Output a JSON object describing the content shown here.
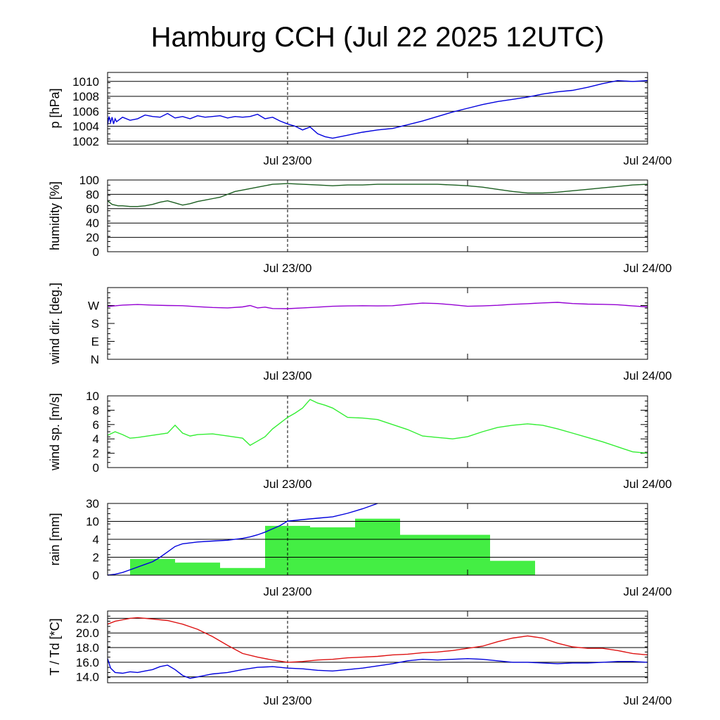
{
  "title": "Hamburg CCH (Jul 22 2025 12UTC)",
  "time_axis": {
    "start_hours": 0,
    "end_hours": 36,
    "ticks": [
      {
        "h": 12,
        "label": "Jul 23/00",
        "dashed": true
      },
      {
        "h": 24,
        "label": "",
        "dashed": false
      },
      {
        "h": 36,
        "label": "Jul 24/00",
        "dashed": false
      }
    ]
  },
  "chart_data": [
    {
      "type": "line",
      "ylabel": "p [hPa]",
      "ylim": [
        1001.6,
        1011.2
      ],
      "yticks": [
        {
          "v": 1002,
          "label": "1002"
        },
        {
          "v": 1004,
          "label": "1004"
        },
        {
          "v": 1006,
          "label": "1006"
        },
        {
          "v": 1008,
          "label": "1008"
        },
        {
          "v": 1010,
          "label": "1010"
        }
      ],
      "grid": true,
      "series": [
        {
          "color": "#0000dd",
          "x": [
            0,
            0.1,
            0.2,
            0.3,
            0.4,
            0.5,
            0.6,
            1,
            1.5,
            2,
            2.5,
            3,
            3.5,
            4,
            4.5,
            5,
            5.5,
            6,
            6.5,
            7,
            7.5,
            8,
            8.5,
            9,
            9.5,
            10,
            10.5,
            11,
            11.5,
            12,
            12.5,
            13,
            13.5,
            14,
            14.5,
            15,
            15.5,
            16,
            16.5,
            17,
            18,
            19,
            20,
            21,
            22,
            23,
            24,
            25,
            26,
            27,
            28,
            29,
            30,
            31,
            32,
            33,
            34,
            35,
            36
          ],
          "y": [
            1004.2,
            1005.3,
            1004.5,
            1005.2,
            1004.3,
            1005.0,
            1004.6,
            1005.2,
            1004.8,
            1005.0,
            1005.5,
            1005.3,
            1005.2,
            1005.7,
            1005.1,
            1005.3,
            1005.0,
            1005.4,
            1005.2,
            1005.3,
            1005.4,
            1005.1,
            1005.3,
            1005.2,
            1005.3,
            1005.6,
            1005.0,
            1005.2,
            1004.7,
            1004.3,
            1004.0,
            1003.5,
            1003.9,
            1003.0,
            1002.6,
            1002.4,
            1002.6,
            1002.8,
            1003.0,
            1003.2,
            1003.5,
            1003.7,
            1004.2,
            1004.7,
            1005.3,
            1005.9,
            1006.4,
            1006.9,
            1007.3,
            1007.6,
            1007.9,
            1008.3,
            1008.6,
            1008.8,
            1009.2,
            1009.7,
            1010.1,
            1010.0,
            1010.1
          ]
        }
      ]
    },
    {
      "type": "line",
      "ylabel": "humidity [%]",
      "ylim": [
        0,
        100
      ],
      "yticks": [
        {
          "v": 0,
          "label": "0"
        },
        {
          "v": 20,
          "label": "20"
        },
        {
          "v": 40,
          "label": "40"
        },
        {
          "v": 60,
          "label": "60"
        },
        {
          "v": 80,
          "label": "80"
        },
        {
          "v": 100,
          "label": "100"
        }
      ],
      "grid": true,
      "series": [
        {
          "color": "#1b5e20",
          "x": [
            0,
            0.3,
            0.7,
            1,
            1.5,
            2,
            2.5,
            3,
            3.5,
            4,
            4.5,
            5,
            5.5,
            6,
            6.5,
            7,
            7.5,
            8,
            8.5,
            9,
            10,
            11,
            12,
            13,
            14,
            15,
            16,
            17,
            18,
            19,
            20,
            21,
            22,
            23,
            24,
            25,
            26,
            27,
            28,
            29,
            30,
            31,
            32,
            33,
            34,
            35,
            36
          ],
          "y": [
            71,
            66,
            64,
            64,
            63,
            63,
            64,
            66,
            69,
            71,
            68,
            65,
            67,
            70,
            72,
            74,
            76,
            80,
            84,
            86,
            90,
            94,
            95,
            94,
            93,
            92,
            93,
            93,
            94,
            94,
            94,
            94,
            94,
            93,
            92,
            90,
            87,
            84,
            82,
            82,
            83,
            85,
            87,
            89,
            91,
            93,
            94
          ]
        }
      ]
    },
    {
      "type": "line",
      "ylabel": "wind dir. [deg.]",
      "ylim": [
        0,
        360
      ],
      "yticks": [
        {
          "v": 0,
          "label": "N"
        },
        {
          "v": 90,
          "label": "E"
        },
        {
          "v": 180,
          "label": "S"
        },
        {
          "v": 270,
          "label": "W"
        }
      ],
      "grid": false,
      "series": [
        {
          "color": "#9400d3",
          "x": [
            0,
            1,
            2,
            3,
            4,
            5,
            6,
            7,
            8,
            9,
            9.5,
            10,
            10.5,
            11,
            12,
            13,
            14,
            15,
            16,
            17,
            18,
            19,
            20,
            21,
            22,
            23,
            24,
            25,
            26,
            27,
            28,
            29,
            30,
            31,
            32,
            33,
            34,
            35,
            36
          ],
          "y": [
            265,
            272,
            275,
            272,
            270,
            269,
            264,
            260,
            258,
            263,
            270,
            258,
            262,
            255,
            254,
            258,
            262,
            266,
            268,
            269,
            268,
            269,
            276,
            282,
            280,
            274,
            266,
            268,
            271,
            276,
            279,
            283,
            286,
            280,
            277,
            276,
            274,
            268,
            263
          ]
        }
      ]
    },
    {
      "type": "line",
      "ylabel": "wind sp. [m/s]",
      "ylim": [
        0,
        10
      ],
      "yticks": [
        {
          "v": 0,
          "label": "0"
        },
        {
          "v": 2,
          "label": "2"
        },
        {
          "v": 4,
          "label": "4"
        },
        {
          "v": 6,
          "label": "6"
        },
        {
          "v": 8,
          "label": "8"
        },
        {
          "v": 10,
          "label": "10"
        }
      ],
      "grid": false,
      "series": [
        {
          "color": "#33ee33",
          "x": [
            0,
            0.5,
            1,
            1.5,
            2,
            3,
            4,
            4.5,
            5,
            5.5,
            6,
            7,
            8,
            9,
            9.5,
            10,
            10.5,
            11,
            11.5,
            12,
            12.5,
            13,
            13.5,
            14,
            14.5,
            15,
            16,
            17,
            18,
            19,
            20,
            21,
            22,
            23,
            24,
            25,
            26,
            27,
            28,
            29,
            30,
            31,
            32,
            33,
            34,
            35,
            36
          ],
          "y": [
            4.5,
            5.0,
            4.6,
            4.1,
            4.2,
            4.5,
            4.8,
            5.9,
            4.8,
            4.4,
            4.6,
            4.7,
            4.4,
            4.1,
            3.1,
            3.7,
            4.3,
            5.4,
            6.2,
            7.0,
            7.6,
            8.3,
            9.5,
            9.0,
            8.7,
            8.3,
            7.0,
            6.9,
            6.7,
            6.0,
            5.3,
            4.4,
            4.2,
            4.0,
            4.3,
            5.0,
            5.6,
            5.9,
            6.1,
            5.9,
            5.4,
            4.8,
            4.2,
            3.6,
            2.9,
            2.2,
            2.0
          ]
        }
      ]
    },
    {
      "type": "bar",
      "ylabel": "rain [mm]",
      "scale": "nonlinear",
      "ylim": [
        0,
        30
      ],
      "yticks": [
        {
          "v": 0,
          "label": "0"
        },
        {
          "v": 2,
          "label": "2"
        },
        {
          "v": 4,
          "label": "4"
        },
        {
          "v": 10,
          "label": "10"
        },
        {
          "v": 30,
          "label": "30"
        }
      ],
      "grid": true,
      "bars": {
        "color": "#44ee44",
        "bins": [
          {
            "x0": 0,
            "x1": 1.5,
            "v": 0
          },
          {
            "x0": 1.5,
            "x1": 4.5,
            "v": 1.8
          },
          {
            "x0": 4.5,
            "x1": 7.5,
            "v": 1.4
          },
          {
            "x0": 7.5,
            "x1": 10.5,
            "v": 0.8
          },
          {
            "x0": 10.5,
            "x1": 13.5,
            "v": 8.5
          },
          {
            "x0": 13.5,
            "x1": 16.5,
            "v": 8.0
          },
          {
            "x0": 16.5,
            "x1": 19.5,
            "v": 13.0
          },
          {
            "x0": 19.5,
            "x1": 25.5,
            "v": 5.5
          },
          {
            "x0": 25.5,
            "x1": 28.5,
            "v": 1.6
          },
          {
            "x0": 28.5,
            "x1": 36,
            "v": 0
          }
        ]
      },
      "series": [
        {
          "color": "#0000dd",
          "name_hidden": true,
          "x": [
            0,
            0.5,
            1,
            1.5,
            2,
            2.5,
            3,
            3.5,
            4,
            4.5,
            5,
            6,
            7,
            8,
            9,
            9.5,
            10,
            10.5,
            11,
            11.5,
            12,
            13,
            14,
            15,
            16,
            17,
            18
          ],
          "y": [
            0,
            0.1,
            0.3,
            0.6,
            0.9,
            1.2,
            1.5,
            2.0,
            2.6,
            3.2,
            3.5,
            3.7,
            3.8,
            3.9,
            4.3,
            4.8,
            5.5,
            6.4,
            7.5,
            8.6,
            10.2,
            12.0,
            13.5,
            15.0,
            19.0,
            24.0,
            30.0
          ]
        }
      ]
    },
    {
      "type": "line",
      "ylabel": "T / Td [*C]",
      "ylim": [
        13.2,
        23.0
      ],
      "yticks": [
        {
          "v": 14,
          "label": "14.0"
        },
        {
          "v": 16,
          "label": "16.0"
        },
        {
          "v": 18,
          "label": "18.0"
        },
        {
          "v": 20,
          "label": "20.0"
        },
        {
          "v": 22,
          "label": "22.0"
        }
      ],
      "grid": true,
      "series": [
        {
          "color": "#dd1111",
          "x": [
            0,
            0.5,
            1,
            1.5,
            2,
            2.5,
            3,
            4,
            5,
            6,
            7,
            8,
            9,
            10,
            11,
            12,
            13,
            14,
            15,
            16,
            17,
            18,
            19,
            20,
            21,
            22,
            23,
            24,
            25,
            26,
            27,
            28,
            29,
            30,
            31,
            32,
            33,
            34,
            35,
            36
          ],
          "y": [
            21.2,
            21.6,
            21.8,
            22.0,
            22.1,
            22.0,
            21.9,
            21.7,
            21.2,
            20.5,
            19.5,
            18.3,
            17.2,
            16.7,
            16.3,
            16.0,
            16.1,
            16.3,
            16.4,
            16.6,
            16.7,
            16.8,
            17.0,
            17.1,
            17.3,
            17.4,
            17.6,
            17.9,
            18.2,
            18.8,
            19.3,
            19.6,
            19.3,
            18.6,
            18.1,
            17.9,
            17.9,
            17.6,
            17.2,
            17.0
          ]
        },
        {
          "color": "#0000dd",
          "x": [
            0,
            0.2,
            0.5,
            1,
            1.5,
            2,
            2.5,
            3,
            3.5,
            4,
            4.5,
            5,
            5.5,
            6,
            7,
            8,
            9,
            10,
            11,
            12,
            13,
            14,
            15,
            16,
            17,
            18,
            19,
            20,
            21,
            22,
            23,
            24,
            25,
            26,
            27,
            28,
            29,
            30,
            31,
            32,
            33,
            34,
            35,
            36
          ],
          "y": [
            16.5,
            15.2,
            14.6,
            14.5,
            14.7,
            14.6,
            14.8,
            15.0,
            15.4,
            15.6,
            15.0,
            14.2,
            13.8,
            14.0,
            14.4,
            14.6,
            15.0,
            15.3,
            15.4,
            15.2,
            15.1,
            14.9,
            14.8,
            15.0,
            15.2,
            15.5,
            15.8,
            16.2,
            16.4,
            16.3,
            16.4,
            16.5,
            16.4,
            16.2,
            16.0,
            16.0,
            15.9,
            15.8,
            15.9,
            15.9,
            16.0,
            16.1,
            16.1,
            16.0
          ]
        }
      ]
    }
  ]
}
